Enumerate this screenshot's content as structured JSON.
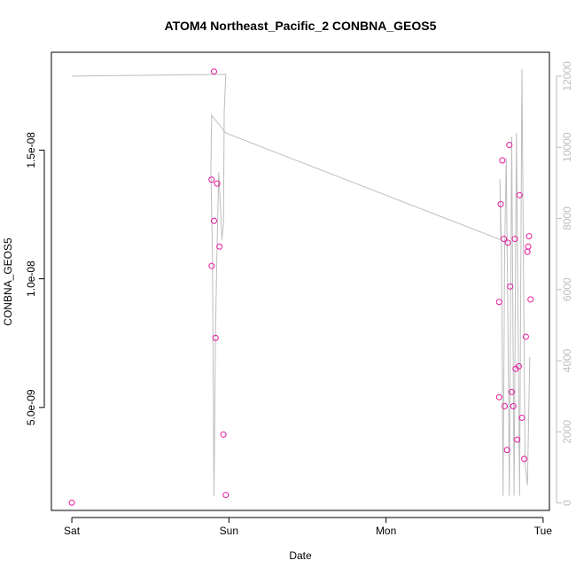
{
  "chart_data": {
    "type": "scatter",
    "title": "ATOM4 Northeast_Pacific_2 CONBNA_GEOS5",
    "xlabel": "Date",
    "ylabel": "CONBNA_GEOS5",
    "x_ticks": [
      {
        "label": "Sat",
        "day": 0
      },
      {
        "label": "Sun",
        "day": 1
      },
      {
        "label": "Mon",
        "day": 2
      },
      {
        "label": "Tue",
        "day": 3
      }
    ],
    "y_ticks": [
      {
        "label": "5.0e-09",
        "value": 5e-09
      },
      {
        "label": "1.0e-08",
        "value": 1e-08
      },
      {
        "label": "1.5e-08",
        "value": 1.5e-08
      }
    ],
    "y2_ticks": [
      {
        "label": "0",
        "value": 0
      },
      {
        "label": "2000",
        "value": 2000
      },
      {
        "label": "4000",
        "value": 4000
      },
      {
        "label": "6000",
        "value": 6000
      },
      {
        "label": "8000",
        "value": 8000
      },
      {
        "label": "10000",
        "value": 10000
      },
      {
        "label": "12000",
        "value": 12000
      }
    ],
    "xlim_days": [
      -0.13,
      3.04
    ],
    "ylim": [
      1e-09,
      1.88e-08
    ],
    "y2lim": [
      -210,
      12670
    ],
    "grid": false,
    "colors": {
      "points": "#e5179a",
      "altitude_line": "#bdbdbd",
      "axes": "#000000"
    },
    "series": [
      {
        "kind": "points",
        "axis": "left",
        "points": [
          {
            "day": 0.0,
            "value": 1.3e-09
          },
          {
            "day": 0.89,
            "value": 1.05e-08
          },
          {
            "day": 0.89,
            "value": 1.385e-08
          },
          {
            "day": 0.905,
            "value": 1.805e-08
          },
          {
            "day": 0.905,
            "value": 1.225e-08
          },
          {
            "day": 0.915,
            "value": 7.7e-09
          },
          {
            "day": 0.925,
            "value": 1.37e-08
          },
          {
            "day": 0.94,
            "value": 1.125e-08
          },
          {
            "day": 0.965,
            "value": 3.95e-09
          },
          {
            "day": 0.98,
            "value": 1.6e-09
          },
          {
            "day": 2.72,
            "value": 9.1e-09
          },
          {
            "day": 2.72,
            "value": 5.4e-09
          },
          {
            "day": 2.73,
            "value": 1.29e-08
          },
          {
            "day": 2.74,
            "value": 1.46e-08
          },
          {
            "day": 2.75,
            "value": 1.155e-08
          },
          {
            "day": 2.755,
            "value": 5.05e-09
          },
          {
            "day": 2.77,
            "value": 3.35e-09
          },
          {
            "day": 2.775,
            "value": 1.14e-08
          },
          {
            "day": 2.785,
            "value": 1.52e-08
          },
          {
            "day": 2.79,
            "value": 9.7e-09
          },
          {
            "day": 2.8,
            "value": 5.6e-09
          },
          {
            "day": 2.81,
            "value": 5.05e-09
          },
          {
            "day": 2.82,
            "value": 1.155e-08
          },
          {
            "day": 2.825,
            "value": 6.5e-09
          },
          {
            "day": 2.835,
            "value": 3.75e-09
          },
          {
            "day": 2.845,
            "value": 6.6e-09
          },
          {
            "day": 2.85,
            "value": 1.325e-08
          },
          {
            "day": 2.865,
            "value": 4.6e-09
          },
          {
            "day": 2.88,
            "value": 3e-09
          },
          {
            "day": 2.89,
            "value": 7.75e-09
          },
          {
            "day": 2.9,
            "value": 1.105e-08
          },
          {
            "day": 2.905,
            "value": 1.125e-08
          },
          {
            "day": 2.91,
            "value": 1.165e-08
          },
          {
            "day": 2.92,
            "value": 9.2e-09
          }
        ]
      },
      {
        "kind": "line",
        "axis": "right",
        "points": [
          {
            "day": 0.0,
            "value": 12000
          },
          {
            "day": 0.98,
            "value": 12050
          },
          {
            "day": 0.97,
            "value": 11000
          },
          {
            "day": 0.965,
            "value": 7800
          },
          {
            "day": 0.955,
            "value": 7400
          },
          {
            "day": 0.945,
            "value": 8400
          },
          {
            "day": 0.935,
            "value": 9300
          },
          {
            "day": 0.925,
            "value": 7300
          },
          {
            "day": 0.915,
            "value": 4900
          },
          {
            "day": 0.905,
            "value": 200
          },
          {
            "day": 0.895,
            "value": 7000
          },
          {
            "day": 0.885,
            "value": 9400
          },
          {
            "day": 0.89,
            "value": 10900
          },
          {
            "day": 0.98,
            "value": 10400
          },
          {
            "day": 2.73,
            "value": 7400
          },
          {
            "day": 2.725,
            "value": 9100
          },
          {
            "day": 2.735,
            "value": 7000
          },
          {
            "day": 2.745,
            "value": 200
          },
          {
            "day": 2.755,
            "value": 7000
          },
          {
            "day": 2.765,
            "value": 9700
          },
          {
            "day": 2.775,
            "value": 5500
          },
          {
            "day": 2.785,
            "value": 200
          },
          {
            "day": 2.8,
            "value": 10300
          },
          {
            "day": 2.815,
            "value": 200
          },
          {
            "day": 2.83,
            "value": 10400
          },
          {
            "day": 2.85,
            "value": 200
          },
          {
            "day": 2.865,
            "value": 12200
          },
          {
            "day": 2.885,
            "value": 1100
          },
          {
            "day": 2.9,
            "value": 500
          },
          {
            "day": 2.915,
            "value": 4100
          }
        ]
      }
    ]
  }
}
